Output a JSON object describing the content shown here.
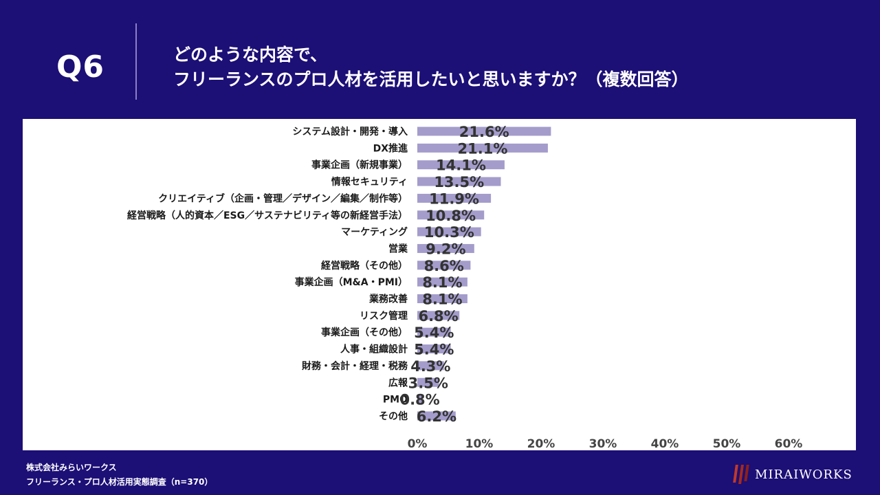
{
  "header": {
    "question": "Q6",
    "title_line1": "どのような内容で、",
    "title_line2": "フリーランスのプロ人材を活用したいと思いますか？（複数回答）"
  },
  "chart_data": {
    "type": "bar",
    "orientation": "horizontal",
    "categories": [
      "システム設計・開発・導入",
      "DX推進",
      "事業企画（新規事業）",
      "情報セキュリティ",
      "クリエイティブ（企画・管理／デザイン／編集／制作等）",
      "経営戦略（人的資本／ESG／サステナビリティ等の新経営手法）",
      "マーケティング",
      "営業",
      "経営戦略（その他）",
      "事業企画（M&A・PMI）",
      "業務改善",
      "リスク管理",
      "事業企画（その他）",
      "人事・組織設計",
      "財務・会計・経理・税務",
      "広報",
      "PMO",
      "その他"
    ],
    "values": [
      21.6,
      21.1,
      14.1,
      13.5,
      11.9,
      10.8,
      10.3,
      9.2,
      8.6,
      8.1,
      8.1,
      6.8,
      5.4,
      5.4,
      4.3,
      3.5,
      0.8,
      6.2
    ],
    "value_labels": [
      "21.6%",
      "21.1%",
      "14.1%",
      "13.5%",
      "11.9%",
      "10.8%",
      "10.3%",
      "9.2%",
      "8.6%",
      "8.1%",
      "8.1%",
      "6.8%",
      "5.4%",
      "5.4%",
      "4.3%",
      "3.5%",
      "0.8%",
      "6.2%"
    ],
    "xlim": [
      0,
      60
    ],
    "x_ticks": [
      "0%",
      "10%",
      "20%",
      "30%",
      "40%",
      "50%",
      "60%"
    ],
    "grid": false,
    "title": "",
    "xlabel": "",
    "ylabel": ""
  },
  "colors": {
    "background": "#1c0f76",
    "bar": "#a49ccb",
    "label_text": "#1a1a1a",
    "value_text": "#333333"
  },
  "footer": {
    "company": "株式会社みらいワークス",
    "survey": "フリーランス・プロ人材活用実態調査（n=370）"
  },
  "logo": {
    "text": "MIRAIWORKS"
  }
}
